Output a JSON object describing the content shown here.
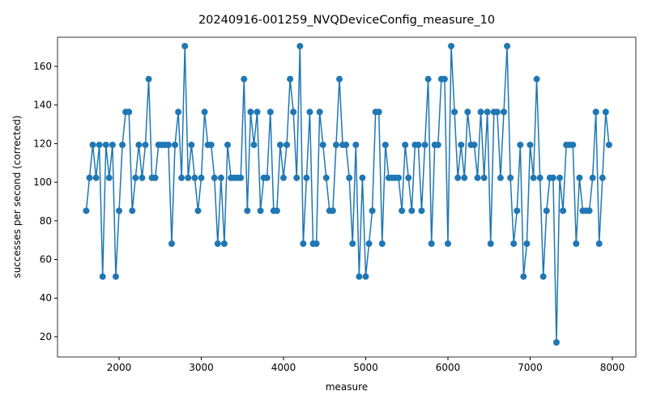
{
  "chart_data": {
    "type": "line",
    "title": "20240916-001259_NVQDeviceConfig_measure_10",
    "xlabel": "measure",
    "ylabel": "successes per second (corrected)",
    "x": [
      1600,
      1640,
      1680,
      1720,
      1760,
      1800,
      1840,
      1880,
      1920,
      1960,
      2000,
      2040,
      2080,
      2120,
      2160,
      2200,
      2240,
      2280,
      2320,
      2360,
      2400,
      2440,
      2480,
      2520,
      2560,
      2600,
      2640,
      2680,
      2720,
      2760,
      2800,
      2840,
      2880,
      2920,
      2960,
      3000,
      3040,
      3080,
      3120,
      3160,
      3200,
      3240,
      3280,
      3320,
      3360,
      3400,
      3440,
      3480,
      3520,
      3560,
      3600,
      3640,
      3680,
      3720,
      3760,
      3800,
      3840,
      3880,
      3920,
      3960,
      4000,
      4040,
      4080,
      4120,
      4160,
      4200,
      4240,
      4280,
      4320,
      4360,
      4400,
      4440,
      4480,
      4520,
      4560,
      4600,
      4640,
      4680,
      4720,
      4760,
      4800,
      4840,
      4880,
      4920,
      4960,
      5000,
      5040,
      5080,
      5120,
      5160,
      5200,
      5240,
      5280,
      5320,
      5360,
      5400,
      5440,
      5480,
      5520,
      5560,
      5600,
      5640,
      5680,
      5720,
      5760,
      5800,
      5840,
      5880,
      5920,
      5960,
      6000,
      6040,
      6080,
      6120,
      6160,
      6200,
      6240,
      6280,
      6320,
      6360,
      6400,
      6440,
      6480,
      6520,
      6560,
      6600,
      6640,
      6680,
      6720,
      6760,
      6800,
      6840,
      6880,
      6920,
      6960,
      7000,
      7040,
      7080,
      7120,
      7160,
      7200,
      7240,
      7280,
      7320,
      7360,
      7400,
      7440,
      7480,
      7520,
      7560,
      7600,
      7640,
      7680,
      7720,
      7760,
      7800,
      7840,
      7880,
      7920,
      7960
    ],
    "series": [
      {
        "color": "#1f77b4",
        "values": [
          85.25,
          102.3,
          119.35,
          102.3,
          119.35,
          51.15,
          119.35,
          102.3,
          119.35,
          51.15,
          85.25,
          119.35,
          136.4,
          136.4,
          85.25,
          102.3,
          119.35,
          102.3,
          119.35,
          153.45,
          102.3,
          102.3,
          119.35,
          119.35,
          119.35,
          119.35,
          68.2,
          119.35,
          136.4,
          102.3,
          170.5,
          102.3,
          119.35,
          102.3,
          85.25,
          102.3,
          136.4,
          119.35,
          119.35,
          102.3,
          68.2,
          102.3,
          68.2,
          119.35,
          102.3,
          102.3,
          102.3,
          102.3,
          153.45,
          85.25,
          136.4,
          119.35,
          136.4,
          85.25,
          102.3,
          102.3,
          136.4,
          85.25,
          85.25,
          119.35,
          102.3,
          119.35,
          153.45,
          136.4,
          102.3,
          170.5,
          68.2,
          102.3,
          136.4,
          68.2,
          68.2,
          136.4,
          119.35,
          102.3,
          85.25,
          85.25,
          119.35,
          153.45,
          119.35,
          119.35,
          102.3,
          68.2,
          119.35,
          51.15,
          102.3,
          51.15,
          68.2,
          85.25,
          136.4,
          136.4,
          68.2,
          119.35,
          102.3,
          102.3,
          102.3,
          102.3,
          85.25,
          119.35,
          102.3,
          85.25,
          119.35,
          119.35,
          85.25,
          119.35,
          153.45,
          68.2,
          119.35,
          119.35,
          153.45,
          153.45,
          68.2,
          170.5,
          136.4,
          102.3,
          119.35,
          102.3,
          136.4,
          119.35,
          119.35,
          102.3,
          136.4,
          102.3,
          136.4,
          68.2,
          136.4,
          136.4,
          102.3,
          136.4,
          170.5,
          102.3,
          68.2,
          85.25,
          119.35,
          51.15,
          68.2,
          119.35,
          102.3,
          153.45,
          102.3,
          51.15,
          85.25,
          102.3,
          102.3,
          17.05,
          102.3,
          85.25,
          119.35,
          119.35,
          119.35,
          68.2,
          102.3,
          85.25,
          85.25,
          85.25,
          102.3,
          136.4,
          68.2,
          102.3,
          136.4,
          119.35
        ]
      }
    ],
    "xlim": [
      1251,
      8286
    ],
    "ylim": [
      9.5,
      175.1
    ],
    "xticks": [
      2000,
      3000,
      4000,
      5000,
      6000,
      7000,
      8000
    ],
    "yticks": [
      20,
      40,
      60,
      80,
      100,
      120,
      140,
      160
    ]
  }
}
